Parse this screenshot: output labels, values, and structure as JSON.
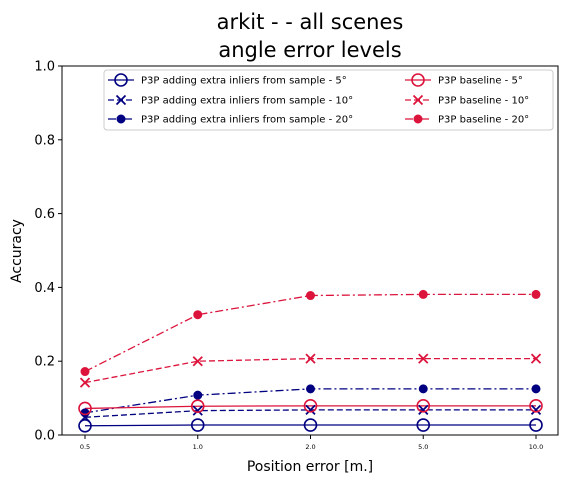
{
  "chart_data": {
    "type": "line",
    "title_line1": "arkit -  - all scenes",
    "title_line2": "angle error levels",
    "xlabel": "Position error [m.]",
    "ylabel": "Accuracy",
    "categories": [
      "0.5",
      "1.0",
      "2.0",
      "5.0",
      "10.0"
    ],
    "ylim": [
      0.0,
      1.0
    ],
    "yticks": [
      "0.0",
      "0.2",
      "0.4",
      "0.6",
      "0.8",
      "1.0"
    ],
    "grid": false,
    "legend_position": "top-right",
    "series": [
      {
        "name": "P3P adding extra inliers from sample - 5°",
        "color": "#000080",
        "dash": "solid",
        "marker": "circle-open",
        "values": [
          0.025,
          0.027,
          0.027,
          0.027,
          0.027
        ]
      },
      {
        "name": "P3P adding extra inliers from sample - 10°",
        "color": "#000080",
        "dash": "dashed",
        "marker": "x",
        "values": [
          0.048,
          0.066,
          0.068,
          0.068,
          0.068
        ]
      },
      {
        "name": "P3P adding extra inliers from sample - 20°",
        "color": "#000080",
        "dash": "dashdot",
        "marker": "dot",
        "values": [
          0.06,
          0.108,
          0.125,
          0.125,
          0.125
        ]
      },
      {
        "name": "P3P baseline - 5°",
        "color": "#dc143c",
        "dash": "solid",
        "marker": "circle-open",
        "values": [
          0.072,
          0.078,
          0.079,
          0.079,
          0.079
        ]
      },
      {
        "name": "P3P baseline - 10°",
        "color": "#dc143c",
        "dash": "dashed",
        "marker": "x",
        "values": [
          0.142,
          0.2,
          0.207,
          0.207,
          0.207
        ]
      },
      {
        "name": "P3P baseline - 20°",
        "color": "#dc143c",
        "dash": "dashdot",
        "marker": "dot",
        "values": [
          0.172,
          0.326,
          0.378,
          0.381,
          0.381
        ]
      }
    ]
  }
}
